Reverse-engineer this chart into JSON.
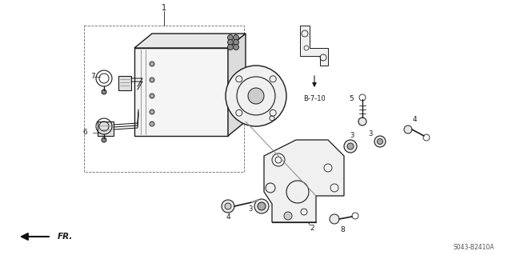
{
  "bg_color": "#ffffff",
  "line_color": "#1a1a1a",
  "fig_width": 6.4,
  "fig_height": 3.19,
  "dpi": 100,
  "part_code": "S043-B2410A"
}
